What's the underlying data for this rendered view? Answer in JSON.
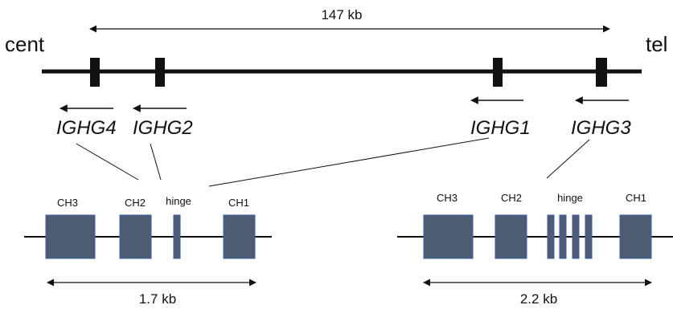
{
  "locus": {
    "left_end": "cent",
    "right_end": "tel",
    "span_label": "147 kb"
  },
  "genes": [
    {
      "name": "IGHG4"
    },
    {
      "name": "IGHG2"
    },
    {
      "name": "IGHG1"
    },
    {
      "name": "IGHG3"
    }
  ],
  "gene_left": {
    "domains": {
      "ch3": "CH3",
      "ch2": "CH2",
      "hinge": "hinge",
      "ch1": "CH1"
    },
    "length_label": "1.7 kb"
  },
  "gene_right": {
    "domains": {
      "ch3": "CH3",
      "ch2": "CH2",
      "hinge": "hinge",
      "ch1": "CH1"
    },
    "length_label": "2.2 kb"
  },
  "colors": {
    "exon_fill": "#4d5b73",
    "exon_stroke": "#3a5ea8",
    "line": "#111111"
  }
}
